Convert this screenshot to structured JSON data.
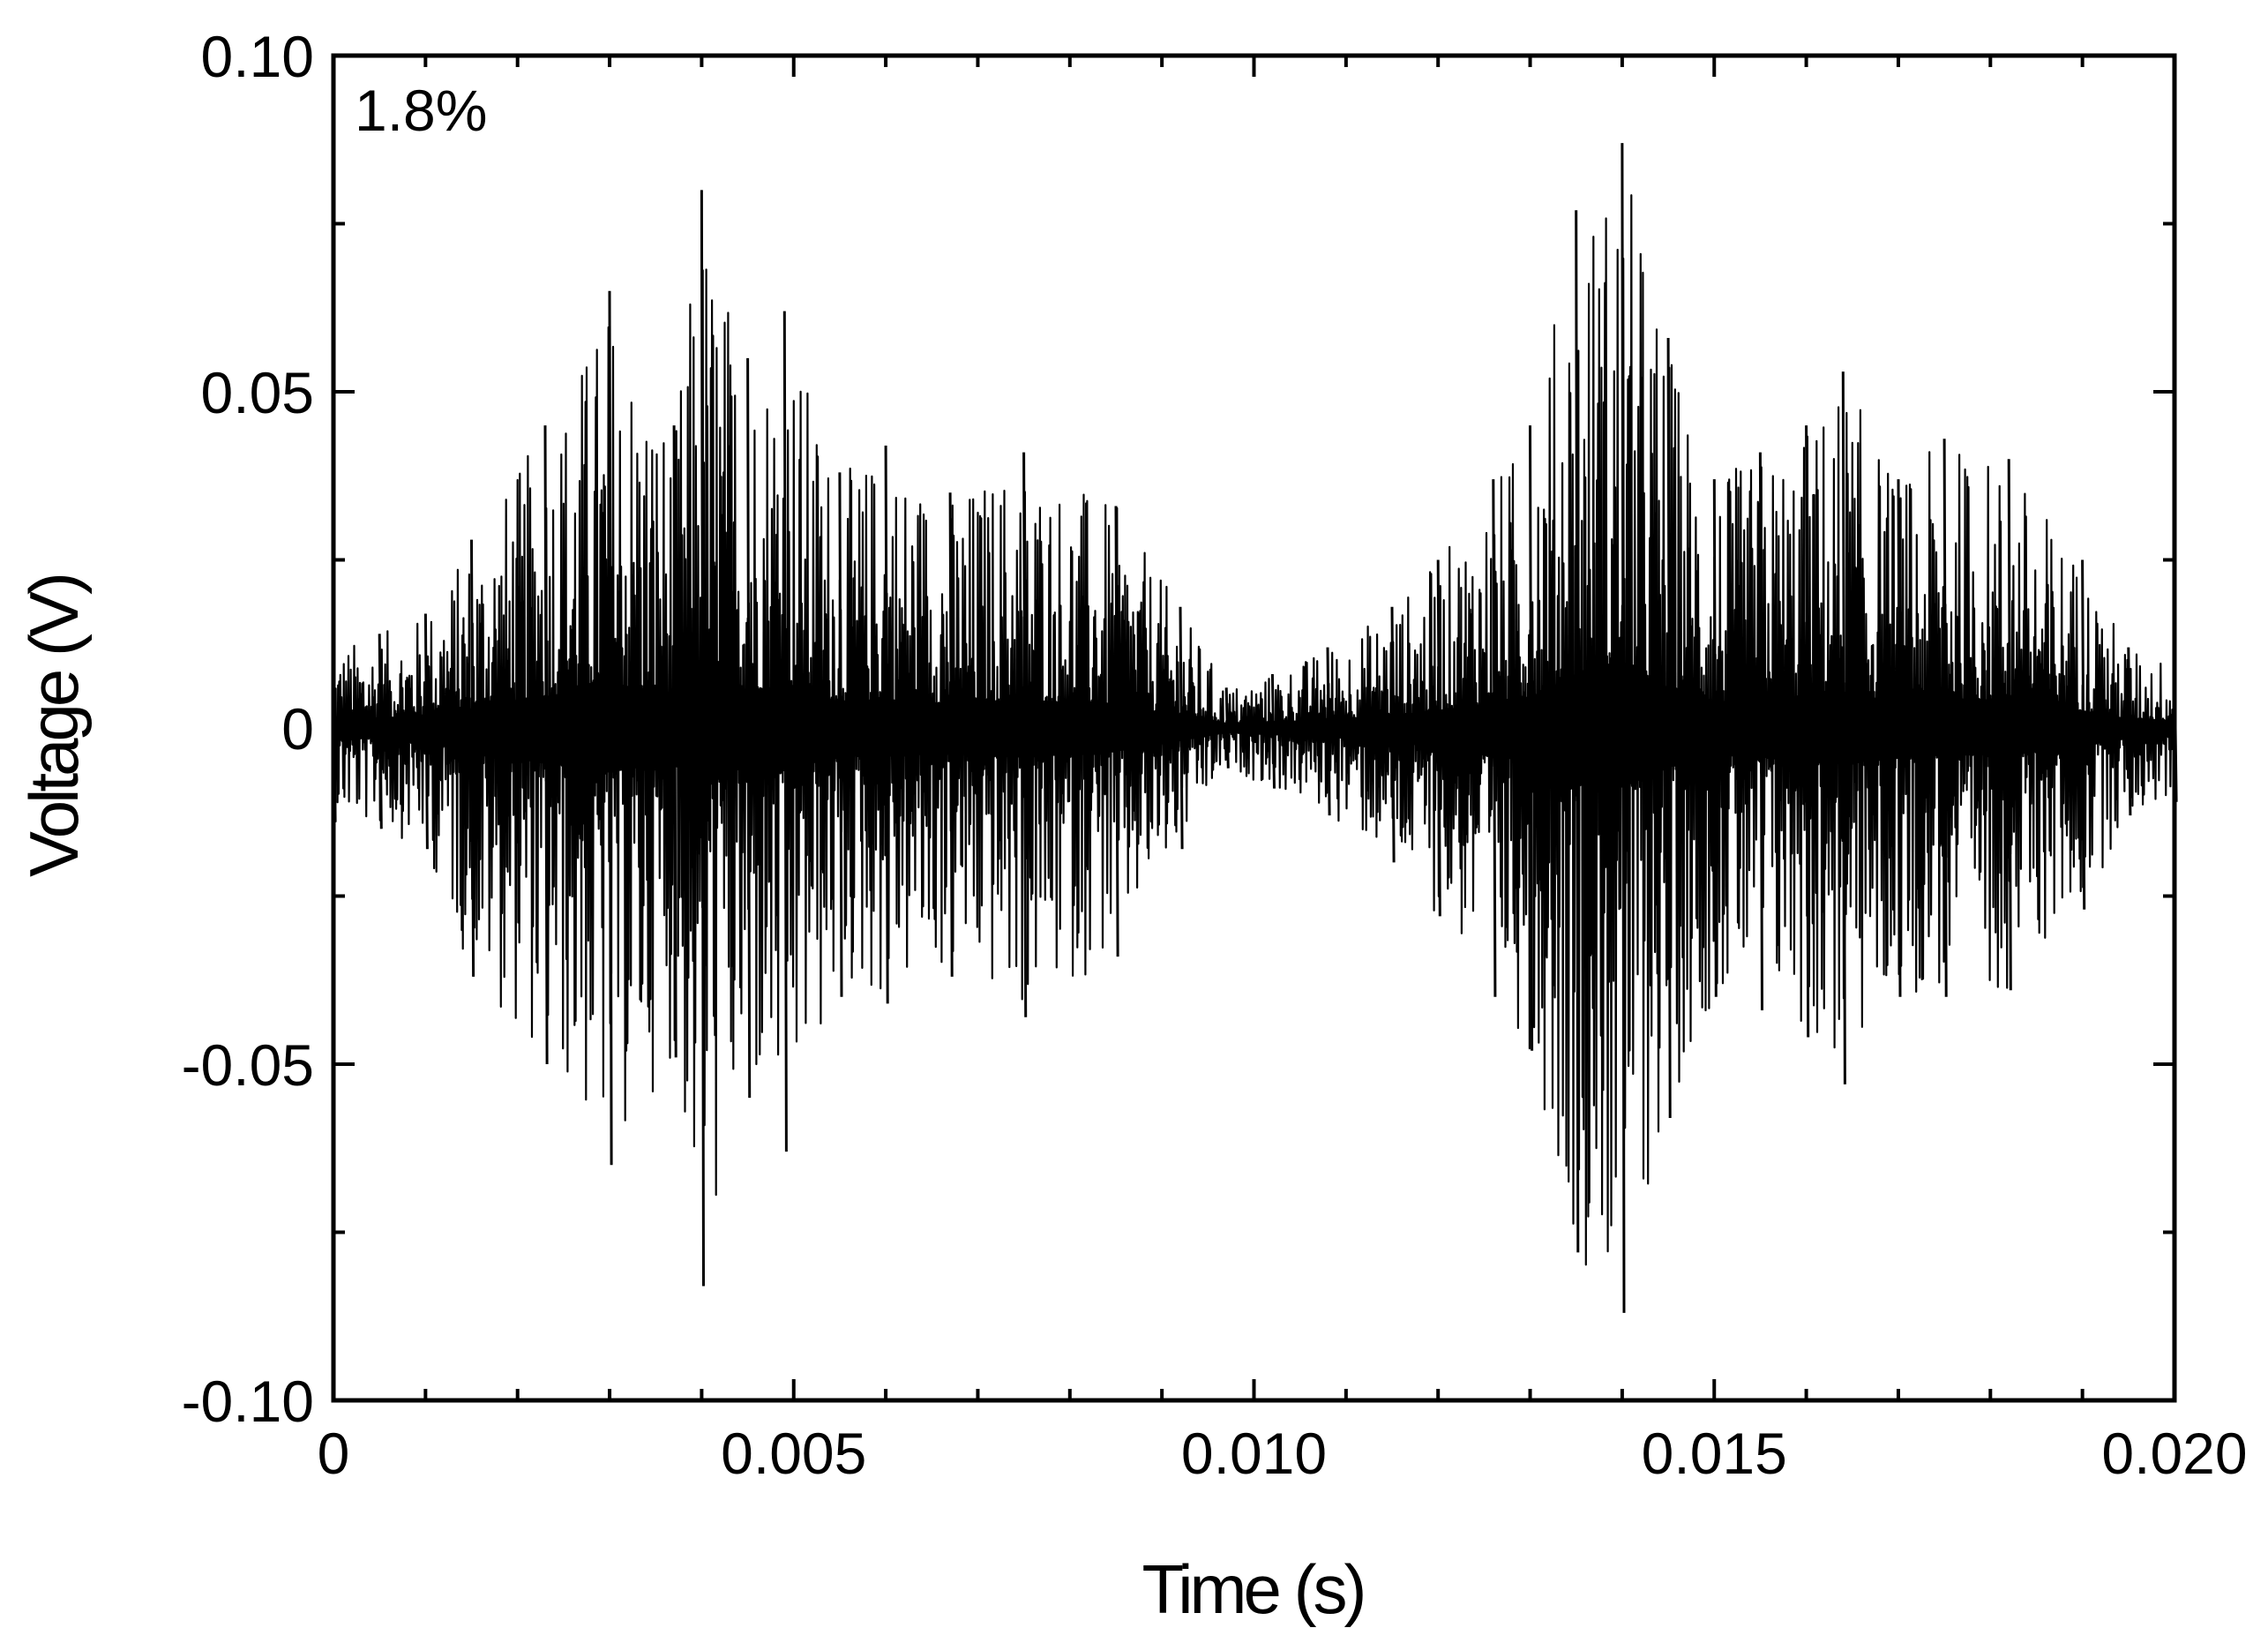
{
  "chart_data": {
    "type": "line",
    "title": "",
    "xlabel": "Time (s)",
    "ylabel": "Voltage (V)",
    "annotation": "1.8%",
    "xlim": [
      0,
      0.02
    ],
    "ylim": [
      -0.1,
      0.1
    ],
    "x_ticks": [
      0,
      0.005,
      0.01,
      0.015,
      0.02
    ],
    "x_tick_labels": [
      "0",
      "0.005",
      "0.010",
      "0.015",
      "0.020"
    ],
    "y_ticks": [
      0.1,
      0.05,
      0,
      -0.05,
      -0.1
    ],
    "y_tick_labels": [
      "0.10",
      "0.05",
      "0",
      "-0.05",
      "-0.10"
    ],
    "grid": false,
    "legend": "none",
    "line_color": "#000000",
    "series": [
      {
        "x": [
          0,
          0.0005,
          0.001,
          0.0015,
          0.0023,
          0.003,
          0.0037,
          0.004,
          0.0045,
          0.0049,
          0.0055,
          0.006,
          0.0067,
          0.0075,
          0.0085,
          0.0092,
          0.0097,
          0.0102,
          0.0108,
          0.0115,
          0.012,
          0.0126,
          0.013,
          0.0135,
          0.014,
          0.0145,
          0.015,
          0.0155,
          0.016,
          0.0164,
          0.017,
          0.0175,
          0.0182,
          0.019,
          0.0195,
          0.02
        ],
        "envelope_upper": [
          0.012,
          0.014,
          0.017,
          0.028,
          0.045,
          0.065,
          0.045,
          0.08,
          0.055,
          0.062,
          0.038,
          0.042,
          0.035,
          0.041,
          0.033,
          0.018,
          0.006,
          0.008,
          0.012,
          0.018,
          0.025,
          0.037,
          0.045,
          0.077,
          0.087,
          0.058,
          0.037,
          0.041,
          0.045,
          0.053,
          0.037,
          0.043,
          0.04,
          0.025,
          0.012,
          0.01
        ],
        "envelope_lower": [
          -0.014,
          -0.015,
          -0.018,
          -0.037,
          -0.05,
          -0.065,
          -0.049,
          -0.083,
          -0.055,
          -0.063,
          -0.04,
          -0.041,
          -0.037,
          -0.043,
          -0.034,
          -0.018,
          -0.006,
          -0.009,
          -0.013,
          -0.02,
          -0.028,
          -0.04,
          -0.048,
          -0.078,
          -0.087,
          -0.058,
          -0.04,
          -0.042,
          -0.046,
          -0.053,
          -0.04,
          -0.04,
          -0.039,
          -0.027,
          -0.013,
          -0.011
        ]
      }
    ]
  }
}
